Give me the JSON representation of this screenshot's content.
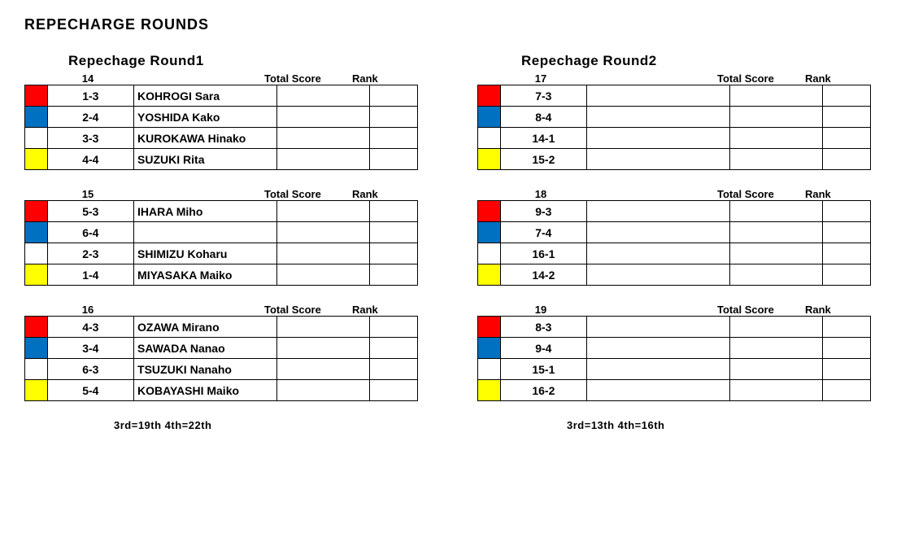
{
  "page_title": "REPECHARGE ROUNDS",
  "colors": {
    "red": "#ff0000",
    "blue": "#0070c0",
    "white": "#ffffff",
    "yellow": "#ffff00"
  },
  "header_labels": {
    "total_score": "Total Score",
    "rank": "Rank"
  },
  "columns": [
    {
      "round_title": "Repechage Round1",
      "footnote": "3rd=19th  4th=22th",
      "heats": [
        {
          "heat_number": "14",
          "rows": [
            {
              "color": "red",
              "seed": "1-3",
              "name": "KOHROGI Sara",
              "score": "",
              "rank": ""
            },
            {
              "color": "blue",
              "seed": "2-4",
              "name": "YOSHIDA Kako",
              "score": "",
              "rank": ""
            },
            {
              "color": "white",
              "seed": "3-3",
              "name": "KUROKAWA Hinako",
              "score": "",
              "rank": ""
            },
            {
              "color": "yellow",
              "seed": "4-4",
              "name": "SUZUKI Rita",
              "score": "",
              "rank": ""
            }
          ]
        },
        {
          "heat_number": "15",
          "rows": [
            {
              "color": "red",
              "seed": "5-3",
              "name": "IHARA Miho",
              "score": "",
              "rank": ""
            },
            {
              "color": "blue",
              "seed": "6-4",
              "name": "",
              "score": "",
              "rank": ""
            },
            {
              "color": "white",
              "seed": "2-3",
              "name": "SHIMIZU Koharu",
              "score": "",
              "rank": ""
            },
            {
              "color": "yellow",
              "seed": "1-4",
              "name": "MIYASAKA Maiko",
              "score": "",
              "rank": ""
            }
          ]
        },
        {
          "heat_number": "16",
          "rows": [
            {
              "color": "red",
              "seed": "4-3",
              "name": "OZAWA Mirano",
              "score": "",
              "rank": ""
            },
            {
              "color": "blue",
              "seed": "3-4",
              "name": "SAWADA Nanao",
              "score": "",
              "rank": ""
            },
            {
              "color": "white",
              "seed": "6-3",
              "name": "TSUZUKI Nanaho",
              "score": "",
              "rank": ""
            },
            {
              "color": "yellow",
              "seed": "5-4",
              "name": "KOBAYASHI Maiko",
              "score": "",
              "rank": ""
            }
          ]
        }
      ]
    },
    {
      "round_title": "Repechage Round2",
      "footnote": "3rd=13th  4th=16th",
      "heats": [
        {
          "heat_number": "17",
          "rows": [
            {
              "color": "red",
              "seed": "7-3",
              "name": "",
              "score": "",
              "rank": ""
            },
            {
              "color": "blue",
              "seed": "8-4",
              "name": "",
              "score": "",
              "rank": ""
            },
            {
              "color": "white",
              "seed": "14-1",
              "name": "",
              "score": "",
              "rank": ""
            },
            {
              "color": "yellow",
              "seed": "15-2",
              "name": "",
              "score": "",
              "rank": ""
            }
          ]
        },
        {
          "heat_number": "18",
          "rows": [
            {
              "color": "red",
              "seed": "9-3",
              "name": "",
              "score": "",
              "rank": ""
            },
            {
              "color": "blue",
              "seed": "7-4",
              "name": "",
              "score": "",
              "rank": ""
            },
            {
              "color": "white",
              "seed": "16-1",
              "name": "",
              "score": "",
              "rank": ""
            },
            {
              "color": "yellow",
              "seed": "14-2",
              "name": "",
              "score": "",
              "rank": ""
            }
          ]
        },
        {
          "heat_number": "19",
          "rows": [
            {
              "color": "red",
              "seed": "8-3",
              "name": "",
              "score": "",
              "rank": ""
            },
            {
              "color": "blue",
              "seed": "9-4",
              "name": "",
              "score": "",
              "rank": ""
            },
            {
              "color": "white",
              "seed": "15-1",
              "name": "",
              "score": "",
              "rank": ""
            },
            {
              "color": "yellow",
              "seed": "16-2",
              "name": "",
              "score": "",
              "rank": ""
            }
          ]
        }
      ]
    }
  ]
}
